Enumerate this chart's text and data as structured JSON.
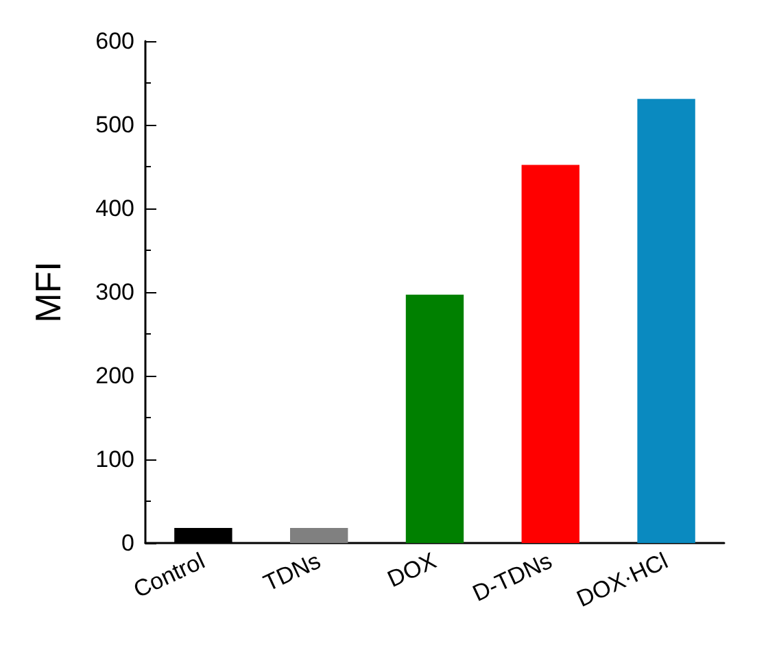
{
  "chart_data": {
    "type": "bar",
    "ylabel": "MFI",
    "categories": [
      "Control",
      "TDNs",
      "DOX",
      "D-TDNs",
      "DOX·HCl"
    ],
    "values": [
      18,
      18,
      297,
      452,
      531
    ],
    "colors": [
      "#000000",
      "#808080",
      "#008000",
      "#ff0000",
      "#0a8ac0"
    ],
    "ylim": [
      0,
      600
    ],
    "yticks": [
      0,
      100,
      200,
      300,
      400,
      500,
      600
    ],
    "grid": false
  }
}
